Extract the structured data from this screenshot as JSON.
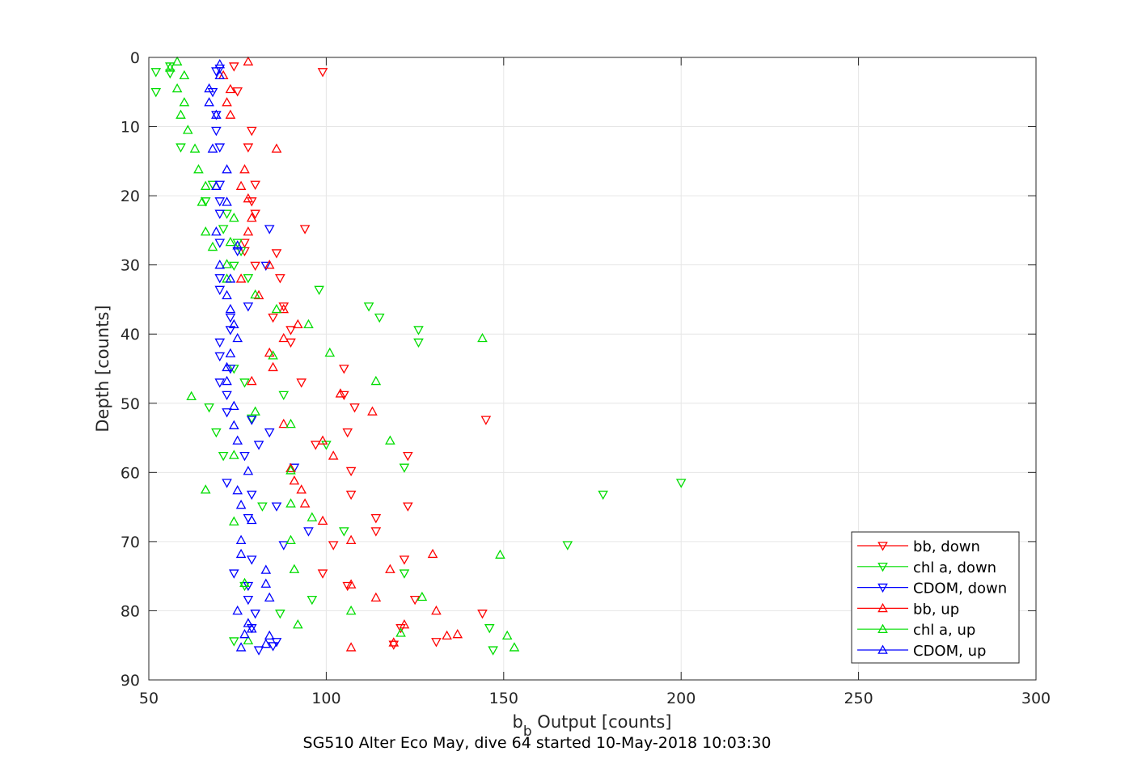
{
  "chart_data": {
    "type": "scatter",
    "title": "SG510 Alter Eco May, dive 64 started 10-May-2018 10:03:30",
    "xlabel_main": "b",
    "xlabel_sub": "b",
    "xlabel_rest": " Output [counts]",
    "ylabel": "Depth [counts]",
    "xlim": [
      50,
      300
    ],
    "ylim": [
      0,
      90
    ],
    "y_reversed": true,
    "grid": true,
    "legend_position": "bottom-right",
    "xticks": [
      "50",
      "100",
      "150",
      "200",
      "250",
      "300"
    ],
    "yticks": [
      "0",
      "10",
      "20",
      "30",
      "40",
      "50",
      "60",
      "70",
      "80",
      "90"
    ],
    "series": [
      {
        "name": "bb, down",
        "color": "#ff0000",
        "marker": "triangle-down",
        "points": [
          [
            74,
            1.3
          ],
          [
            99,
            2.1
          ],
          [
            75,
            4.9
          ],
          [
            79,
            10.6
          ],
          [
            78,
            13.0
          ],
          [
            80,
            18.4
          ],
          [
            79,
            20.8
          ],
          [
            80,
            22.6
          ],
          [
            94,
            24.8
          ],
          [
            77,
            26.8
          ],
          [
            77,
            28.0
          ],
          [
            86,
            28.3
          ],
          [
            80,
            30.1
          ],
          [
            87,
            31.9
          ],
          [
            88,
            36.0
          ],
          [
            85,
            37.6
          ],
          [
            90,
            39.4
          ],
          [
            90,
            41.2
          ],
          [
            105,
            45.0
          ],
          [
            93,
            47.0
          ],
          [
            105,
            48.8
          ],
          [
            108,
            50.6
          ],
          [
            145,
            52.4
          ],
          [
            106,
            54.2
          ],
          [
            97,
            56.0
          ],
          [
            123,
            57.6
          ],
          [
            107,
            59.8
          ],
          [
            107,
            63.2
          ],
          [
            123,
            64.9
          ],
          [
            114,
            66.6
          ],
          [
            114,
            68.5
          ],
          [
            102,
            70.5
          ],
          [
            122,
            72.6
          ],
          [
            99,
            74.6
          ],
          [
            106,
            76.4
          ],
          [
            125,
            78.4
          ],
          [
            144,
            80.4
          ],
          [
            121,
            82.5
          ],
          [
            131,
            84.5
          ],
          [
            119,
            84.9
          ]
        ]
      },
      {
        "name": "chl a, down",
        "color": "#00dd00",
        "marker": "triangle-down",
        "points": [
          [
            56,
            1.3
          ],
          [
            52,
            2.1
          ],
          [
            56,
            2.3
          ],
          [
            52,
            5.0
          ],
          [
            59,
            13.0
          ],
          [
            68,
            18.4
          ],
          [
            66,
            20.8
          ],
          [
            72,
            22.6
          ],
          [
            71,
            24.8
          ],
          [
            75,
            26.8
          ],
          [
            76,
            28.0
          ],
          [
            74,
            30.1
          ],
          [
            78,
            31.9
          ],
          [
            98,
            33.6
          ],
          [
            112,
            36.0
          ],
          [
            115,
            37.6
          ],
          [
            126,
            39.4
          ],
          [
            126,
            41.2
          ],
          [
            74,
            45.0
          ],
          [
            77,
            47.0
          ],
          [
            88,
            48.8
          ],
          [
            67,
            50.6
          ],
          [
            79,
            52.2
          ],
          [
            69,
            54.2
          ],
          [
            100,
            56.0
          ],
          [
            71,
            57.6
          ],
          [
            122,
            59.3
          ],
          [
            200,
            61.5
          ],
          [
            178,
            63.2
          ],
          [
            82,
            64.9
          ],
          [
            105,
            68.5
          ],
          [
            168,
            70.5
          ],
          [
            122,
            74.6
          ],
          [
            77,
            76.4
          ],
          [
            96,
            78.4
          ],
          [
            87,
            80.4
          ],
          [
            146,
            82.5
          ],
          [
            74,
            84.4
          ],
          [
            147,
            85.7
          ]
        ]
      },
      {
        "name": "CDOM, down",
        "color": "#0000ff",
        "marker": "triangle-down",
        "points": [
          [
            70,
            1.6
          ],
          [
            69,
            2.0
          ],
          [
            68,
            5.0
          ],
          [
            69,
            8.3
          ],
          [
            69,
            10.6
          ],
          [
            70,
            13.0
          ],
          [
            70,
            18.4
          ],
          [
            70,
            20.8
          ],
          [
            70,
            22.6
          ],
          [
            84,
            24.8
          ],
          [
            70,
            26.8
          ],
          [
            75,
            28.0
          ],
          [
            83,
            30.1
          ],
          [
            70,
            31.9
          ],
          [
            70,
            33.6
          ],
          [
            78,
            36.0
          ],
          [
            73,
            37.6
          ],
          [
            73,
            39.4
          ],
          [
            70,
            41.2
          ],
          [
            70,
            43.2
          ],
          [
            73,
            45.0
          ],
          [
            70,
            47.0
          ],
          [
            72,
            48.8
          ],
          [
            72,
            51.3
          ],
          [
            79,
            52.4
          ],
          [
            84,
            54.2
          ],
          [
            81,
            56.0
          ],
          [
            77,
            57.6
          ],
          [
            91,
            59.3
          ],
          [
            72,
            61.5
          ],
          [
            79,
            63.2
          ],
          [
            86,
            64.9
          ],
          [
            78,
            66.6
          ],
          [
            95,
            68.5
          ],
          [
            88,
            70.5
          ],
          [
            79,
            72.6
          ],
          [
            74,
            74.6
          ],
          [
            78,
            76.4
          ],
          [
            78,
            78.4
          ],
          [
            80,
            80.4
          ],
          [
            79,
            82.5
          ],
          [
            86,
            84.5
          ],
          [
            81,
            85.7
          ],
          [
            85,
            85.1
          ]
        ]
      },
      {
        "name": "bb, up",
        "color": "#ff0000",
        "marker": "triangle-up",
        "points": [
          [
            78,
            0.6
          ],
          [
            71,
            2.6
          ],
          [
            73,
            4.6
          ],
          [
            72,
            6.5
          ],
          [
            73,
            8.3
          ],
          [
            86,
            13.2
          ],
          [
            77,
            16.2
          ],
          [
            76,
            18.6
          ],
          [
            78,
            20.4
          ],
          [
            79,
            23.2
          ],
          [
            78,
            25.2
          ],
          [
            84,
            30.0
          ],
          [
            76,
            32.0
          ],
          [
            81,
            34.4
          ],
          [
            88,
            36.4
          ],
          [
            92,
            38.6
          ],
          [
            88,
            40.6
          ],
          [
            84,
            42.7
          ],
          [
            85,
            44.8
          ],
          [
            79,
            46.8
          ],
          [
            104,
            48.6
          ],
          [
            113,
            51.2
          ],
          [
            88,
            53.0
          ],
          [
            99,
            55.4
          ],
          [
            102,
            57.6
          ],
          [
            90,
            59.4
          ],
          [
            91,
            61.2
          ],
          [
            93,
            62.5
          ],
          [
            94,
            64.5
          ],
          [
            99,
            67.0
          ],
          [
            107,
            69.8
          ],
          [
            130,
            71.8
          ],
          [
            118,
            74.0
          ],
          [
            107,
            76.2
          ],
          [
            114,
            78.1
          ],
          [
            131,
            80.0
          ],
          [
            122,
            82.0
          ],
          [
            137,
            83.4
          ],
          [
            134,
            83.6
          ],
          [
            107,
            85.3
          ],
          [
            119,
            84.6
          ]
        ]
      },
      {
        "name": "chl a, up",
        "color": "#00dd00",
        "marker": "triangle-up",
        "points": [
          [
            58,
            0.6
          ],
          [
            56,
            1.5
          ],
          [
            60,
            2.6
          ],
          [
            58,
            4.5
          ],
          [
            60,
            6.5
          ],
          [
            59,
            8.3
          ],
          [
            61,
            10.5
          ],
          [
            63,
            13.2
          ],
          [
            64,
            16.2
          ],
          [
            66,
            18.6
          ],
          [
            65,
            20.9
          ],
          [
            74,
            23.2
          ],
          [
            66,
            25.2
          ],
          [
            73,
            26.7
          ],
          [
            68,
            27.4
          ],
          [
            72,
            29.9
          ],
          [
            72,
            32.0
          ],
          [
            80,
            34.3
          ],
          [
            86,
            36.4
          ],
          [
            95,
            38.6
          ],
          [
            144,
            40.6
          ],
          [
            101,
            42.7
          ],
          [
            85,
            43.1
          ],
          [
            114,
            46.8
          ],
          [
            62,
            49.0
          ],
          [
            80,
            51.2
          ],
          [
            90,
            53.0
          ],
          [
            118,
            55.4
          ],
          [
            74,
            57.5
          ],
          [
            90,
            59.7
          ],
          [
            66,
            62.5
          ],
          [
            90,
            64.5
          ],
          [
            96,
            66.5
          ],
          [
            74,
            67.1
          ],
          [
            90,
            69.8
          ],
          [
            149,
            71.9
          ],
          [
            91,
            74.0
          ],
          [
            77,
            76.0
          ],
          [
            127,
            78.0
          ],
          [
            107,
            80.0
          ],
          [
            92,
            82.0
          ],
          [
            121,
            83.2
          ],
          [
            151,
            83.6
          ],
          [
            153,
            85.3
          ],
          [
            78,
            84.3
          ]
        ]
      },
      {
        "name": "CDOM, up",
        "color": "#0000ff",
        "marker": "triangle-up",
        "points": [
          [
            70,
            1.0
          ],
          [
            70,
            2.6
          ],
          [
            67,
            4.5
          ],
          [
            67,
            6.5
          ],
          [
            69,
            8.3
          ],
          [
            68,
            13.2
          ],
          [
            72,
            16.2
          ],
          [
            69,
            18.6
          ],
          [
            72,
            20.9
          ],
          [
            69,
            25.2
          ],
          [
            75,
            27.2
          ],
          [
            70,
            30.0
          ],
          [
            73,
            32.0
          ],
          [
            72,
            34.4
          ],
          [
            73,
            36.4
          ],
          [
            74,
            38.6
          ],
          [
            75,
            40.6
          ],
          [
            73,
            42.8
          ],
          [
            72,
            44.8
          ],
          [
            72,
            46.8
          ],
          [
            74,
            50.4
          ],
          [
            74,
            53.2
          ],
          [
            75,
            55.4
          ],
          [
            78,
            59.8
          ],
          [
            75,
            62.6
          ],
          [
            76,
            64.7
          ],
          [
            79,
            66.9
          ],
          [
            76,
            69.8
          ],
          [
            76,
            71.8
          ],
          [
            83,
            74.1
          ],
          [
            83,
            76.1
          ],
          [
            84,
            78.1
          ],
          [
            75,
            80.0
          ],
          [
            78,
            81.8
          ],
          [
            77,
            83.4
          ],
          [
            79,
            82.6
          ],
          [
            84,
            83.6
          ],
          [
            76,
            85.3
          ],
          [
            83,
            84.8
          ]
        ]
      }
    ]
  }
}
